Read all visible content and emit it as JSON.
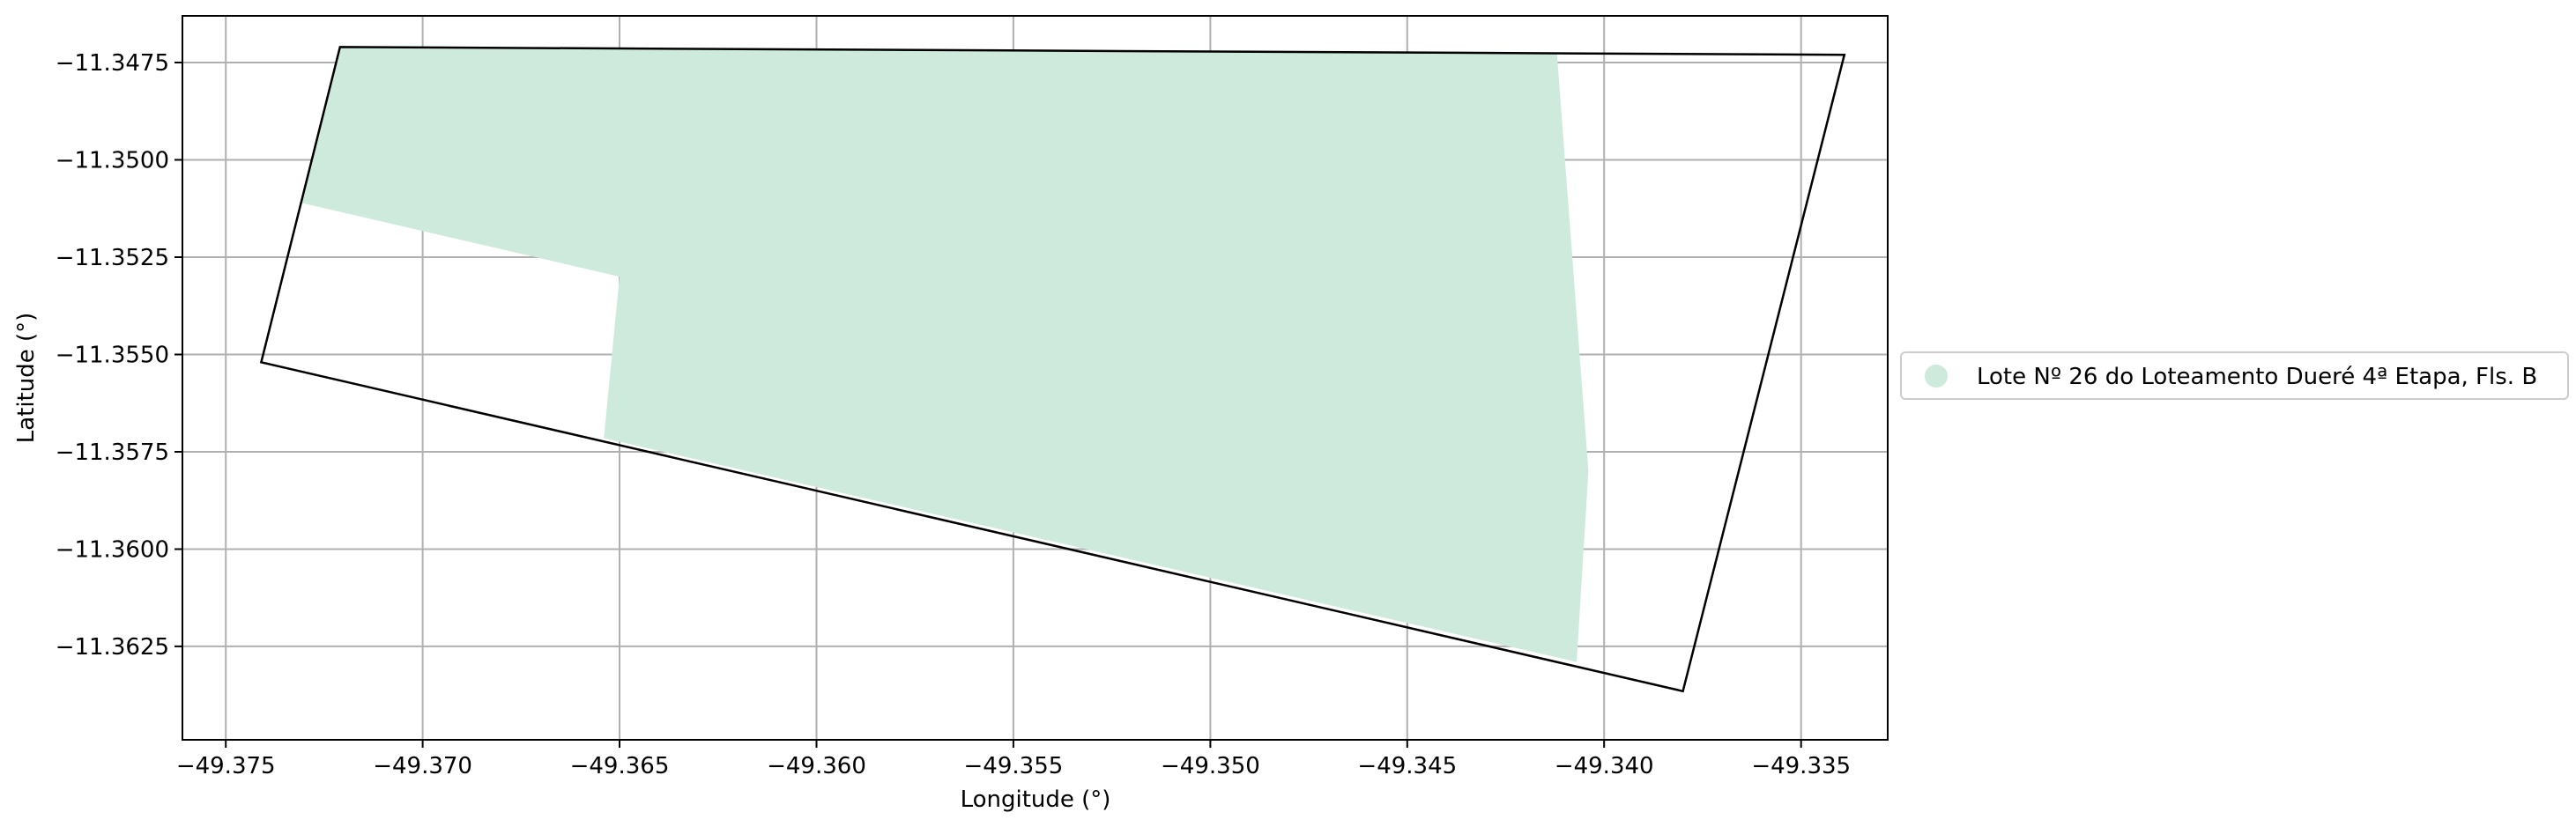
{
  "chart_data": {
    "type": "map",
    "xlabel": "Longitude (°)",
    "ylabel": "Latitude (°)",
    "xlim": [
      -49.3761,
      -49.3328
    ],
    "ylim": [
      -11.3649,
      -11.3463
    ],
    "xticks": [
      -49.375,
      -49.37,
      -49.365,
      -49.36,
      -49.355,
      -49.35,
      -49.345,
      -49.34,
      -49.335
    ],
    "xtick_labels": [
      "−49.375",
      "−49.370",
      "−49.365",
      "−49.360",
      "−49.355",
      "−49.350",
      "−49.345",
      "−49.340",
      "−49.335"
    ],
    "yticks": [
      -11.3475,
      -11.35,
      -11.3525,
      -11.355,
      -11.3575,
      -11.36,
      -11.3625
    ],
    "ytick_labels": [
      "−11.3475",
      "−11.3500",
      "−11.3525",
      "−11.3550",
      "−11.3575",
      "−11.3600",
      "−11.3625"
    ],
    "grid": true,
    "legend_position": "right",
    "fill_color": "#cdeadc",
    "outline_color": "#000000",
    "series": [
      {
        "name": "Lote Nº 26 do Loteamento Dueré 4ª Etapa, Fls. B",
        "role": "filled-area",
        "points": [
          [
            -49.3721,
            -11.3471
          ],
          [
            -49.3412,
            -11.34725
          ],
          [
            -49.3404,
            -11.358
          ],
          [
            -49.3407,
            -11.3629
          ],
          [
            -49.3654,
            -11.35715
          ],
          [
            -49.365,
            -11.353
          ],
          [
            -49.3731,
            -11.3511
          ]
        ]
      },
      {
        "role": "boundary",
        "points": [
          [
            -49.3721,
            -11.3471
          ],
          [
            -49.3339,
            -11.3473
          ],
          [
            -49.338,
            -11.36365
          ],
          [
            -49.3741,
            -11.3552
          ]
        ]
      }
    ]
  }
}
